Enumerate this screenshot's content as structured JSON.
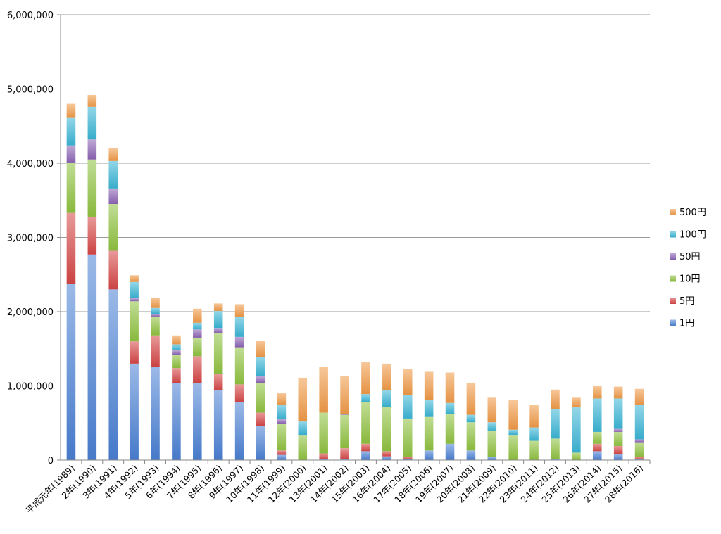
{
  "chart_data": {
    "type": "bar",
    "stacked": true,
    "title": "",
    "xlabel": "",
    "ylabel": "",
    "ylim": [
      0,
      6000000
    ],
    "yticks": [
      "0",
      "1,000,000",
      "2,000,000",
      "3,000,000",
      "4,000,000",
      "5,000,000",
      "6,000,000"
    ],
    "grid": true,
    "legend_position": "right",
    "categories": [
      "平成元年(1989)",
      "2年(1990)",
      "3年(1991)",
      "4年(1992)",
      "5年(1993)",
      "6年(1994)",
      "7年(1995)",
      "8年(1996)",
      "9年(1997)",
      "10年(1998)",
      "11年(1999)",
      "12年(2000)",
      "13年(2001)",
      "14年(2002)",
      "15年(2003)",
      "16年(2004)",
      "17年(2005)",
      "18年(2006)",
      "19年(2007)",
      "20年(2008)",
      "21年(2009)",
      "22年(2010)",
      "23年(2011)",
      "24年(2012)",
      "25年(2013)",
      "26年(2014)",
      "27年(2015)",
      "28年(2016)"
    ],
    "series": [
      {
        "name": "1円",
        "color": "#4a7fd4",
        "values": [
          2370000,
          2770000,
          2300000,
          1300000,
          1260000,
          1040000,
          1040000,
          940000,
          780000,
          460000,
          70000,
          0,
          10000,
          10000,
          120000,
          50000,
          20000,
          130000,
          220000,
          130000,
          40000,
          0,
          0,
          10000,
          0,
          120000,
          80000,
          10000
        ]
      },
      {
        "name": "5円",
        "color": "#d64545",
        "values": [
          960000,
          510000,
          520000,
          300000,
          420000,
          200000,
          360000,
          220000,
          240000,
          180000,
          60000,
          0,
          80000,
          150000,
          100000,
          70000,
          20000,
          0,
          0,
          0,
          0,
          0,
          0,
          0,
          0,
          100000,
          110000,
          30000
        ]
      },
      {
        "name": "10円",
        "color": "#8fc23f",
        "values": [
          670000,
          770000,
          630000,
          540000,
          250000,
          180000,
          250000,
          550000,
          500000,
          400000,
          360000,
          340000,
          550000,
          450000,
          560000,
          600000,
          520000,
          460000,
          400000,
          380000,
          350000,
          340000,
          260000,
          280000,
          100000,
          160000,
          190000,
          200000
        ]
      },
      {
        "name": "50円",
        "color": "#8b63b5",
        "values": [
          240000,
          270000,
          210000,
          40000,
          40000,
          60000,
          110000,
          70000,
          140000,
          90000,
          60000,
          0,
          0,
          10000,
          0,
          0,
          0,
          0,
          0,
          0,
          0,
          0,
          0,
          0,
          0,
          0,
          40000,
          40000
        ]
      },
      {
        "name": "100円",
        "color": "#3ab5d6",
        "values": [
          370000,
          440000,
          370000,
          220000,
          80000,
          80000,
          90000,
          230000,
          270000,
          260000,
          190000,
          180000,
          0,
          0,
          110000,
          220000,
          320000,
          220000,
          150000,
          100000,
          120000,
          70000,
          180000,
          400000,
          610000,
          450000,
          410000,
          460000
        ]
      },
      {
        "name": "500円",
        "color": "#f09a46",
        "values": [
          190000,
          160000,
          170000,
          90000,
          140000,
          120000,
          190000,
          100000,
          170000,
          220000,
          160000,
          590000,
          620000,
          510000,
          430000,
          360000,
          350000,
          380000,
          410000,
          430000,
          340000,
          400000,
          300000,
          260000,
          140000,
          170000,
          160000,
          220000
        ]
      }
    ]
  }
}
